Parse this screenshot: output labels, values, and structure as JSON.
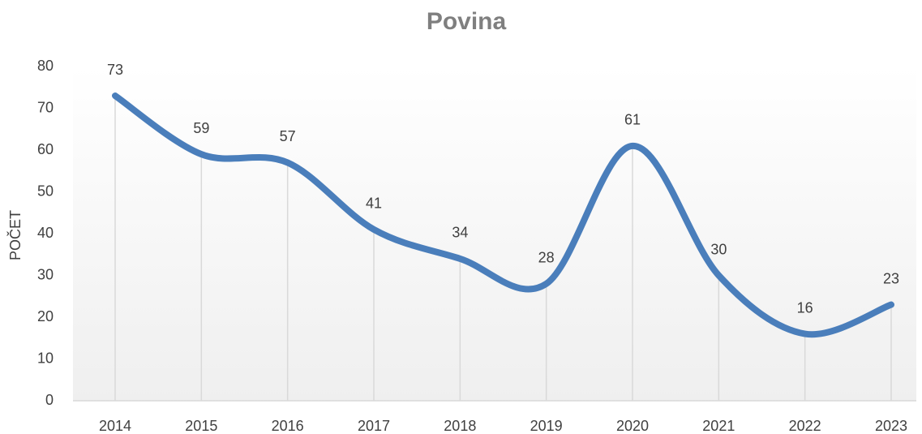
{
  "chart_data": {
    "type": "line",
    "title": "Povina",
    "y_label": "POČET",
    "categories": [
      "2014",
      "2015",
      "2016",
      "2017",
      "2018",
      "2019",
      "2020",
      "2021",
      "2022",
      "2023"
    ],
    "values": [
      73,
      59,
      57,
      41,
      34,
      28,
      61,
      30,
      16,
      23
    ],
    "color": "#4a7ebb",
    "smooth": true,
    "ylim": [
      0,
      80
    ],
    "yticks": [
      0,
      10,
      20,
      30,
      40,
      50,
      60,
      70,
      80
    ],
    "grid": "x"
  }
}
